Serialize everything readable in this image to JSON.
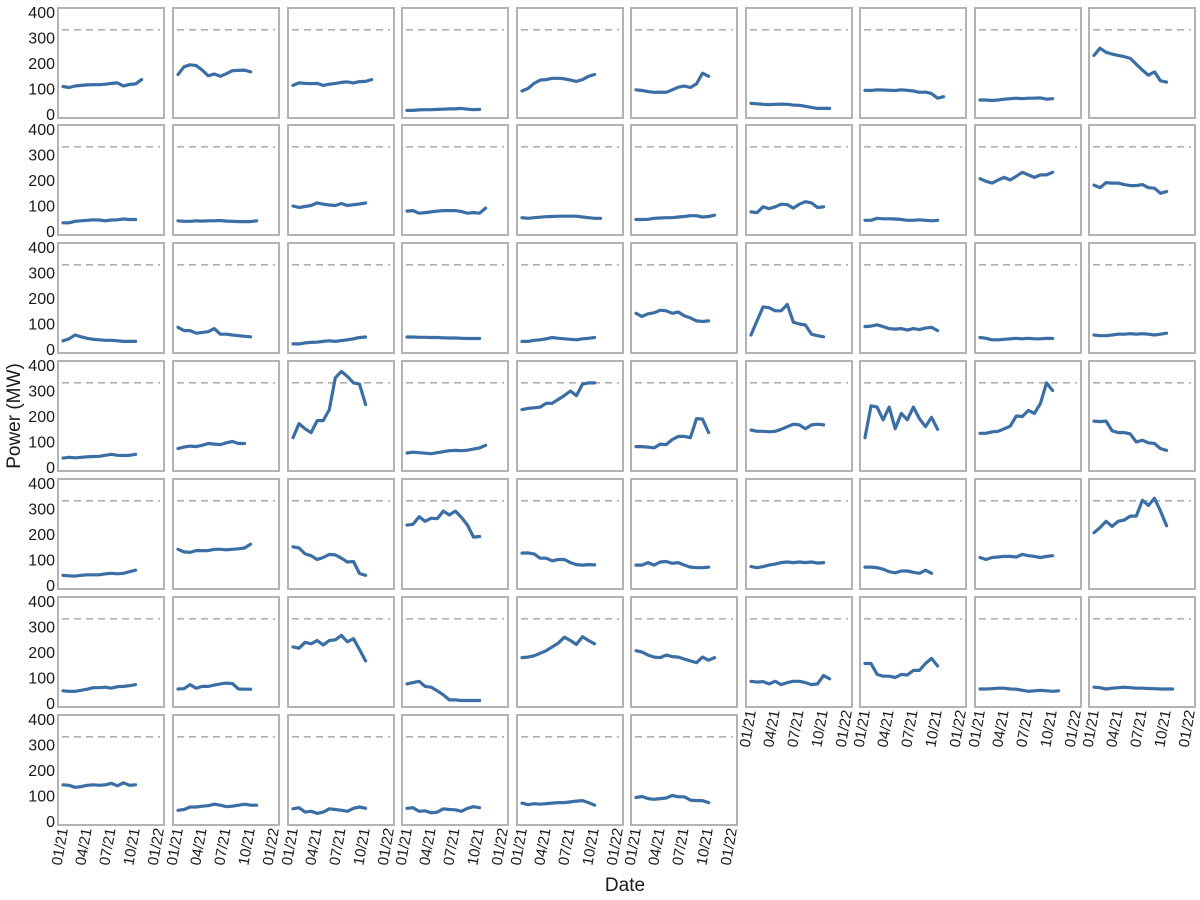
{
  "chart_data": {
    "type": "line",
    "layout": "small-multiples",
    "rows": 7,
    "cols": 10,
    "xlabel": "Date",
    "ylabel": "Power (MW)",
    "ylim": [
      0,
      400
    ],
    "xlim": [
      "2021-01-01",
      "2022-01-01"
    ],
    "y_ticks": [
      0,
      100,
      200,
      300,
      400
    ],
    "x_ticks": [
      {
        "date": "2021-01-01",
        "label": "01/21"
      },
      {
        "date": "2021-04-01",
        "label": "04/21"
      },
      {
        "date": "2021-07-01",
        "label": "07/21"
      },
      {
        "date": "2021-10-01",
        "label": "10/21"
      },
      {
        "date": "2022-01-01",
        "label": "01/22"
      }
    ],
    "x": [
      "2021-01-01",
      "2021-01-24",
      "2021-02-16",
      "2021-03-11",
      "2021-04-03",
      "2021-04-26",
      "2021-05-19",
      "2021-06-11",
      "2021-07-04",
      "2021-07-27",
      "2021-08-19",
      "2021-09-11",
      "2021-10-04",
      "2021-10-27",
      "2021-11-19",
      "2021-12-12"
    ],
    "reference_line": 330,
    "grid": false,
    "legend": "none",
    "colors": {
      "line": "#3a6ea5",
      "reference": "#b0b0b0",
      "frame": "#b3b3b3"
    },
    "panels": [
      {
        "values": [
          108,
          104,
          110,
          112,
          114,
          115,
          115,
          117,
          120,
          122,
          110,
          116,
          118,
          135
        ]
      },
      {
        "values": [
          155,
          185,
          193,
          190,
          172,
          150,
          157,
          148,
          158,
          170,
          171,
          172,
          165
        ]
      },
      {
        "values": [
          112,
          122,
          120,
          119,
          120,
          112,
          117,
          120,
          124,
          126,
          122,
          127,
          128,
          135
        ]
      },
      {
        "values": [
          14,
          14,
          16,
          17,
          17,
          18,
          19,
          20,
          20,
          22,
          19,
          17,
          18
        ]
      },
      {
        "values": [
          90,
          100,
          120,
          133,
          135,
          140,
          140,
          138,
          133,
          128,
          135,
          148,
          155
        ]
      },
      {
        "values": [
          95,
          92,
          88,
          85,
          86,
          85,
          95,
          105,
          110,
          104,
          118,
          160,
          148
        ]
      },
      {
        "values": [
          42,
          40,
          38,
          37,
          38,
          39,
          38,
          35,
          34,
          30,
          26,
          22,
          22,
          22
        ]
      },
      {
        "values": [
          93,
          92,
          95,
          94,
          93,
          92,
          95,
          93,
          90,
          85,
          86,
          80,
          62,
          68
        ]
      },
      {
        "values": [
          55,
          55,
          53,
          55,
          58,
          60,
          62,
          60,
          62,
          62,
          63,
          58,
          60
        ]
      },
      {
        "values": [
          230,
          258,
          242,
          235,
          230,
          225,
          218,
          195,
          172,
          152,
          165,
          130,
          125
        ]
      },
      {
        "values": [
          32,
          32,
          38,
          40,
          42,
          44,
          43,
          40,
          43,
          44,
          47,
          45,
          45
        ]
      },
      {
        "values": [
          40,
          38,
          38,
          40,
          39,
          40,
          40,
          41,
          39,
          38,
          37,
          37,
          37,
          40
        ]
      },
      {
        "values": [
          98,
          92,
          96,
          100,
          110,
          105,
          102,
          100,
          108,
          100,
          103,
          106,
          110
        ]
      },
      {
        "values": [
          78,
          80,
          70,
          72,
          75,
          78,
          80,
          80,
          80,
          76,
          70,
          72,
          70,
          90
        ]
      },
      {
        "values": [
          52,
          50,
          52,
          54,
          56,
          57,
          58,
          58,
          58,
          58,
          55,
          52,
          50,
          50
        ]
      },
      {
        "values": [
          45,
          45,
          46,
          50,
          51,
          52,
          52,
          55,
          57,
          60,
          60,
          55,
          57,
          62
        ]
      },
      {
        "values": [
          75,
          72,
          95,
          88,
          95,
          105,
          103,
          90,
          105,
          115,
          110,
          92,
          95
        ]
      },
      {
        "values": [
          42,
          42,
          50,
          48,
          48,
          47,
          45,
          42,
          42,
          44,
          42,
          40,
          42
        ]
      },
      {
        "values": [
          205,
          195,
          188,
          200,
          210,
          200,
          215,
          230,
          220,
          210,
          220,
          220,
          230
        ]
      },
      {
        "values": [
          180,
          170,
          190,
          188,
          188,
          182,
          178,
          178,
          182,
          170,
          168,
          148,
          155
        ]
      },
      {
        "values": [
          32,
          40,
          55,
          48,
          42,
          38,
          36,
          34,
          34,
          32,
          30,
          30,
          30
        ]
      },
      {
        "values": [
          85,
          72,
          72,
          62,
          65,
          68,
          80,
          58,
          58,
          55,
          52,
          50,
          48
        ]
      },
      {
        "values": [
          20,
          20,
          24,
          26,
          27,
          30,
          32,
          30,
          33,
          36,
          40,
          45,
          47
        ]
      },
      {
        "values": [
          47,
          47,
          46,
          46,
          45,
          45,
          44,
          43,
          43,
          42,
          41,
          41,
          41
        ]
      },
      {
        "values": [
          30,
          30,
          34,
          36,
          40,
          45,
          42,
          40,
          38,
          36,
          40,
          42,
          45
        ]
      },
      {
        "values": [
          140,
          128,
          138,
          142,
          152,
          150,
          140,
          145,
          130,
          122,
          110,
          108,
          110
        ]
      },
      {
        "values": [
          55,
          110,
          165,
          162,
          150,
          150,
          175,
          105,
          98,
          94,
          58,
          52,
          48
        ]
      },
      {
        "values": [
          88,
          90,
          95,
          88,
          80,
          78,
          80,
          74,
          80,
          76,
          82,
          85,
          72
        ]
      },
      {
        "values": [
          45,
          42,
          36,
          36,
          38,
          40,
          42,
          40,
          42,
          40,
          40,
          42,
          41
        ]
      },
      {
        "values": [
          55,
          52,
          52,
          55,
          58,
          58,
          60,
          58,
          60,
          58,
          55,
          58,
          62
        ]
      },
      {
        "values": [
          35,
          38,
          36,
          38,
          40,
          41,
          42,
          46,
          50,
          46,
          45,
          46,
          50
        ]
      },
      {
        "values": [
          72,
          78,
          82,
          80,
          85,
          92,
          90,
          88,
          95,
          100,
          92,
          92
        ]
      },
      {
        "values": [
          115,
          170,
          150,
          135,
          182,
          182,
          225,
          350,
          375,
          355,
          330,
          325,
          245
        ]
      },
      {
        "values": [
          55,
          58,
          56,
          54,
          52,
          56,
          60,
          64,
          65,
          64,
          66,
          70,
          75,
          85
        ]
      },
      {
        "values": [
          225,
          230,
          232,
          235,
          250,
          250,
          265,
          280,
          298,
          280,
          325,
          330,
          330
        ]
      },
      {
        "values": [
          80,
          80,
          78,
          75,
          90,
          88,
          108,
          120,
          120,
          115,
          190,
          188,
          135
        ]
      },
      {
        "values": [
          145,
          140,
          140,
          138,
          140,
          148,
          158,
          168,
          165,
          150,
          165,
          168,
          165
        ]
      },
      {
        "values": [
          115,
          240,
          235,
          185,
          235,
          150,
          210,
          185,
          235,
          190,
          158,
          195,
          148
        ]
      },
      {
        "values": [
          132,
          132,
          138,
          140,
          150,
          160,
          200,
          198,
          222,
          210,
          250,
          330,
          300
        ]
      },
      {
        "values": [
          180,
          178,
          180,
          142,
          135,
          135,
          130,
          98,
          105,
          95,
          92,
          72,
          65
        ]
      },
      {
        "values": [
          38,
          36,
          35,
          38,
          40,
          40,
          40,
          44,
          46,
          44,
          46,
          52,
          58
        ]
      },
      {
        "values": [
          140,
          130,
          128,
          135,
          135,
          135,
          140,
          140,
          138,
          140,
          142,
          145,
          160
        ]
      },
      {
        "values": [
          150,
          145,
          122,
          115,
          100,
          108,
          120,
          118,
          105,
          90,
          92,
          45,
          38
        ]
      },
      {
        "values": [
          235,
          238,
          268,
          250,
          262,
          260,
          290,
          275,
          290,
          265,
          235,
          188,
          190
        ]
      },
      {
        "values": [
          125,
          126,
          122,
          105,
          105,
          95,
          100,
          100,
          88,
          80,
          78,
          80,
          79
        ]
      },
      {
        "values": [
          78,
          78,
          88,
          78,
          90,
          92,
          85,
          88,
          78,
          70,
          68,
          68,
          70
        ]
      },
      {
        "values": [
          72,
          68,
          72,
          78,
          82,
          88,
          90,
          88,
          90,
          88,
          90,
          86,
          88
        ]
      },
      {
        "values": [
          70,
          70,
          68,
          62,
          52,
          48,
          55,
          55,
          50,
          46,
          58,
          46
        ]
      },
      {
        "values": [
          108,
          100,
          108,
          110,
          112,
          112,
          110,
          120,
          115,
          112,
          108,
          112,
          115
        ]
      },
      {
        "values": [
          205,
          225,
          250,
          230,
          250,
          255,
          270,
          270,
          332,
          312,
          340,
          290,
          232
        ]
      },
      {
        "values": [
          48,
          46,
          46,
          50,
          54,
          60,
          60,
          62,
          58,
          64,
          65,
          68,
          72
        ]
      },
      {
        "values": [
          55,
          56,
          72,
          58,
          65,
          65,
          70,
          75,
          78,
          76,
          55,
          54,
          54
        ]
      },
      {
        "values": [
          220,
          215,
          238,
          232,
          245,
          228,
          245,
          248,
          265,
          240,
          252,
          210,
          165
        ]
      },
      {
        "values": [
          75,
          80,
          85,
          65,
          62,
          48,
          32,
          12,
          12,
          10,
          10,
          10,
          10
        ]
      },
      {
        "values": [
          178,
          180,
          185,
          195,
          205,
          220,
          235,
          258,
          245,
          230,
          260,
          245,
          232
        ]
      },
      {
        "values": [
          205,
          200,
          188,
          180,
          178,
          188,
          182,
          180,
          172,
          165,
          158,
          180,
          168,
          178
        ]
      },
      {
        "values": [
          85,
          82,
          84,
          75,
          85,
          72,
          80,
          85,
          85,
          80,
          72,
          75,
          108,
          95
        ]
      },
      {
        "values": [
          155,
          155,
          112,
          105,
          105,
          100,
          112,
          110,
          128,
          128,
          155,
          175,
          145
        ]
      },
      {
        "values": [
          55,
          55,
          56,
          58,
          58,
          55,
          54,
          50,
          46,
          48,
          50,
          48,
          46,
          48
        ]
      },
      {
        "values": [
          62,
          60,
          55,
          58,
          60,
          62,
          60,
          58,
          58,
          57,
          56,
          55,
          55,
          55
        ]
      },
      {
        "values": [
          142,
          140,
          132,
          135,
          140,
          142,
          140,
          142,
          148,
          138,
          150,
          140,
          142
        ]
      },
      {
        "values": [
          42,
          45,
          55,
          55,
          58,
          60,
          66,
          62,
          56,
          58,
          62,
          66,
          62,
          62
        ]
      },
      {
        "values": [
          48,
          52,
          35,
          38,
          30,
          35,
          48,
          45,
          42,
          38,
          50,
          55,
          50
        ]
      },
      {
        "values": [
          50,
          52,
          38,
          40,
          32,
          35,
          48,
          45,
          44,
          38,
          50,
          56,
          52
        ]
      },
      {
        "values": [
          70,
          64,
          68,
          66,
          68,
          70,
          72,
          72,
          75,
          78,
          80,
          72,
          62
        ]
      },
      {
        "values": [
          92,
          96,
          88,
          85,
          88,
          90,
          100,
          95,
          95,
          82,
          80,
          80,
          72
        ]
      }
    ]
  }
}
